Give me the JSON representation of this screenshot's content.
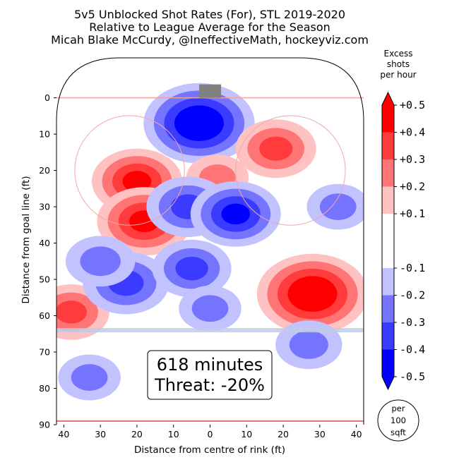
{
  "chart_data": {
    "type": "heatmap",
    "title_lines": [
      "5v5 Unblocked Shot Rates (For), STL 2019-2020",
      "Relative to League Average for the Season",
      "Micah Blake McCurdy, @IneffectiveMath, hockeyviz.com"
    ],
    "xlabel": "Distance from centre of rink (ft)",
    "ylabel": "Distance from goal line (ft)",
    "xlim": [
      -42,
      42
    ],
    "ylim": [
      90,
      -11
    ],
    "x_ticks": [
      -40,
      -30,
      -20,
      -10,
      0,
      10,
      20,
      30,
      40
    ],
    "x_tick_labels": [
      "40",
      "30",
      "20",
      "10",
      "0",
      "10",
      "20",
      "30",
      "40"
    ],
    "y_ticks": [
      0,
      10,
      20,
      30,
      40,
      50,
      60,
      70,
      80,
      90
    ],
    "y_tick_labels": [
      "0",
      "10",
      "20",
      "30",
      "40",
      "50",
      "60",
      "70",
      "80",
      "90"
    ],
    "colorbar": {
      "title_lines": [
        "Excess",
        "shots",
        "per hour"
      ],
      "range": [
        -0.5,
        0.5
      ],
      "ticks": [
        0.5,
        0.4,
        0.3,
        0.2,
        0.1,
        -0.1,
        -0.2,
        -0.3,
        -0.4,
        -0.5
      ],
      "tick_labels": [
        "+0.5",
        "+0.4",
        "+0.3",
        "+0.2",
        "+0.1",
        "-0.1",
        "-0.2",
        "-0.3",
        "-0.4",
        "-0.5"
      ],
      "levels": [
        {
          "from": 0.4,
          "to": 0.5,
          "color": "#ff0000"
        },
        {
          "from": 0.3,
          "to": 0.4,
          "color": "#ff3b3b"
        },
        {
          "from": 0.2,
          "to": 0.3,
          "color": "#ff7474"
        },
        {
          "from": 0.1,
          "to": 0.2,
          "color": "#ffc2c2"
        },
        {
          "from": -0.1,
          "to": 0.1,
          "color": "#ffffff"
        },
        {
          "from": -0.2,
          "to": -0.1,
          "color": "#c2c2ff"
        },
        {
          "from": -0.3,
          "to": -0.2,
          "color": "#7474ff"
        },
        {
          "from": -0.4,
          "to": -0.3,
          "color": "#3b3bff"
        },
        {
          "from": -0.5,
          "to": -0.4,
          "color": "#0000ff"
        }
      ]
    },
    "hotspots": [
      {
        "x": -3,
        "y": 7,
        "value": -0.5
      },
      {
        "x": -20,
        "y": 23,
        "value": 0.35
      },
      {
        "x": -18,
        "y": 34,
        "value": 0.38
      },
      {
        "x": 18,
        "y": 14,
        "value": 0.28
      },
      {
        "x": 2,
        "y": 22,
        "value": 0.15
      },
      {
        "x": 28,
        "y": 54,
        "value": 0.5
      },
      {
        "x": -38,
        "y": 59,
        "value": 0.25
      },
      {
        "x": -6,
        "y": 30,
        "value": -0.3
      },
      {
        "x": 7,
        "y": 32,
        "value": -0.35
      },
      {
        "x": -23,
        "y": 51,
        "value": -0.32
      },
      {
        "x": -5,
        "y": 47,
        "value": -0.27
      },
      {
        "x": 35,
        "y": 30,
        "value": -0.15
      },
      {
        "x": -30,
        "y": 45,
        "value": -0.2
      },
      {
        "x": 0,
        "y": 58,
        "value": -0.15
      },
      {
        "x": -33,
        "y": 77,
        "value": -0.15
      },
      {
        "x": 27,
        "y": 68,
        "value": -0.18
      }
    ],
    "annotation_lines": [
      "618 minutes",
      "Threat: -20%"
    ],
    "unit_badge_lines": [
      "per",
      "100",
      "sqft"
    ]
  }
}
